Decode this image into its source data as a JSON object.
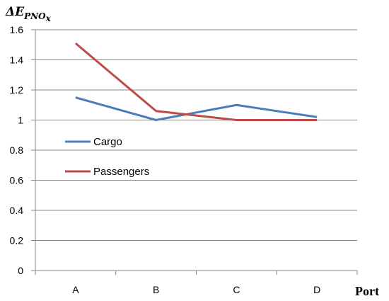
{
  "chart_data": {
    "type": "line",
    "categories": [
      "A",
      "B",
      "C",
      "D"
    ],
    "series": [
      {
        "name": "Cargo",
        "values": [
          1.15,
          1.0,
          1.1,
          1.02
        ],
        "color": "#4a7ebb"
      },
      {
        "name": "Passengers",
        "values": [
          1.51,
          1.06,
          1.0,
          1.0
        ],
        "color": "#be4b48"
      }
    ],
    "ylabel": {
      "main": "ΔE",
      "sub": "PNO",
      "subsub": "x"
    },
    "xlabel": "Port",
    "ylim": [
      0,
      1.6
    ],
    "yticks": [
      "0",
      "0.2",
      "0.4",
      "0.6",
      "0.8",
      "1",
      "1.2",
      "1.4",
      "1.6"
    ],
    "ytick_values": [
      0,
      0.2,
      0.4,
      0.6,
      0.8,
      1,
      1.2,
      1.4,
      1.6
    ],
    "grid": true,
    "legend_position": "left-middle",
    "gridline_color": "#878787",
    "axis_color": "#878787"
  }
}
